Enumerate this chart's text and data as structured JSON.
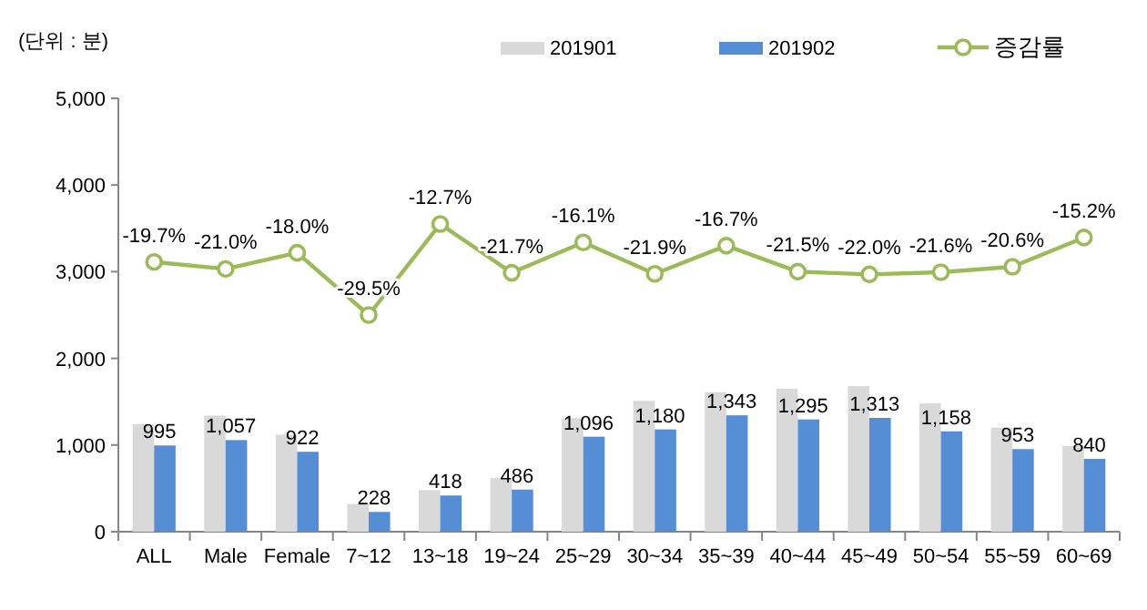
{
  "chart_data": {
    "type": "bar",
    "categories": [
      "ALL",
      "Male",
      "Female",
      "7~12",
      "13~18",
      "19~24",
      "25~29",
      "30~34",
      "35~39",
      "40~44",
      "45~49",
      "50~54",
      "55~59",
      "60~69"
    ],
    "series": [
      {
        "name": "201901",
        "color": "#d9d9d9",
        "values": [
          1240,
          1340,
          1120,
          320,
          480,
          620,
          1310,
          1510,
          1610,
          1650,
          1680,
          1480,
          1200,
          990
        ]
      },
      {
        "name": "201902",
        "color": "#558ed5",
        "values": [
          995,
          1057,
          922,
          228,
          418,
          486,
          1096,
          1180,
          1343,
          1295,
          1313,
          1158,
          953,
          840
        ],
        "value_labels": [
          "995",
          "1,057",
          "922",
          "228",
          "418",
          "486",
          "1,096",
          "1,180",
          "1,343",
          "1,295",
          "1,313",
          "1,158",
          "953",
          "840"
        ]
      },
      {
        "name": "증감률",
        "type": "line",
        "axis": "y2",
        "color": "#9bbb59",
        "marker": "circle",
        "values": [
          -19.7,
          -21.0,
          -18.0,
          -29.5,
          -12.7,
          -21.7,
          -16.1,
          -21.9,
          -16.7,
          -21.5,
          -22.0,
          -21.6,
          -20.6,
          -15.2
        ],
        "value_labels": [
          "-19.7%",
          "-21.0%",
          "-18.0%",
          "-29.5%",
          "-12.7%",
          "-21.7%",
          "-16.1%",
          "-21.9%",
          "-16.7%",
          "-21.5%",
          "-22.0%",
          "-21.6%",
          "-20.6%",
          "-15.2%"
        ]
      }
    ],
    "ylim": [
      0,
      5000
    ],
    "yticks": [
      {
        "value": 0,
        "label": "0"
      },
      {
        "value": 1000,
        "label": "1,000"
      },
      {
        "value": 2000,
        "label": "2,000"
      },
      {
        "value": 3000,
        "label": "3,000"
      },
      {
        "value": 4000,
        "label": "4,000"
      },
      {
        "value": 5000,
        "label": "5,000"
      }
    ],
    "y2lim": [
      -69.5,
      10.5
    ],
    "legend": "top right",
    "grid": false,
    "annotations": [
      "(단위 : 분)"
    ]
  }
}
